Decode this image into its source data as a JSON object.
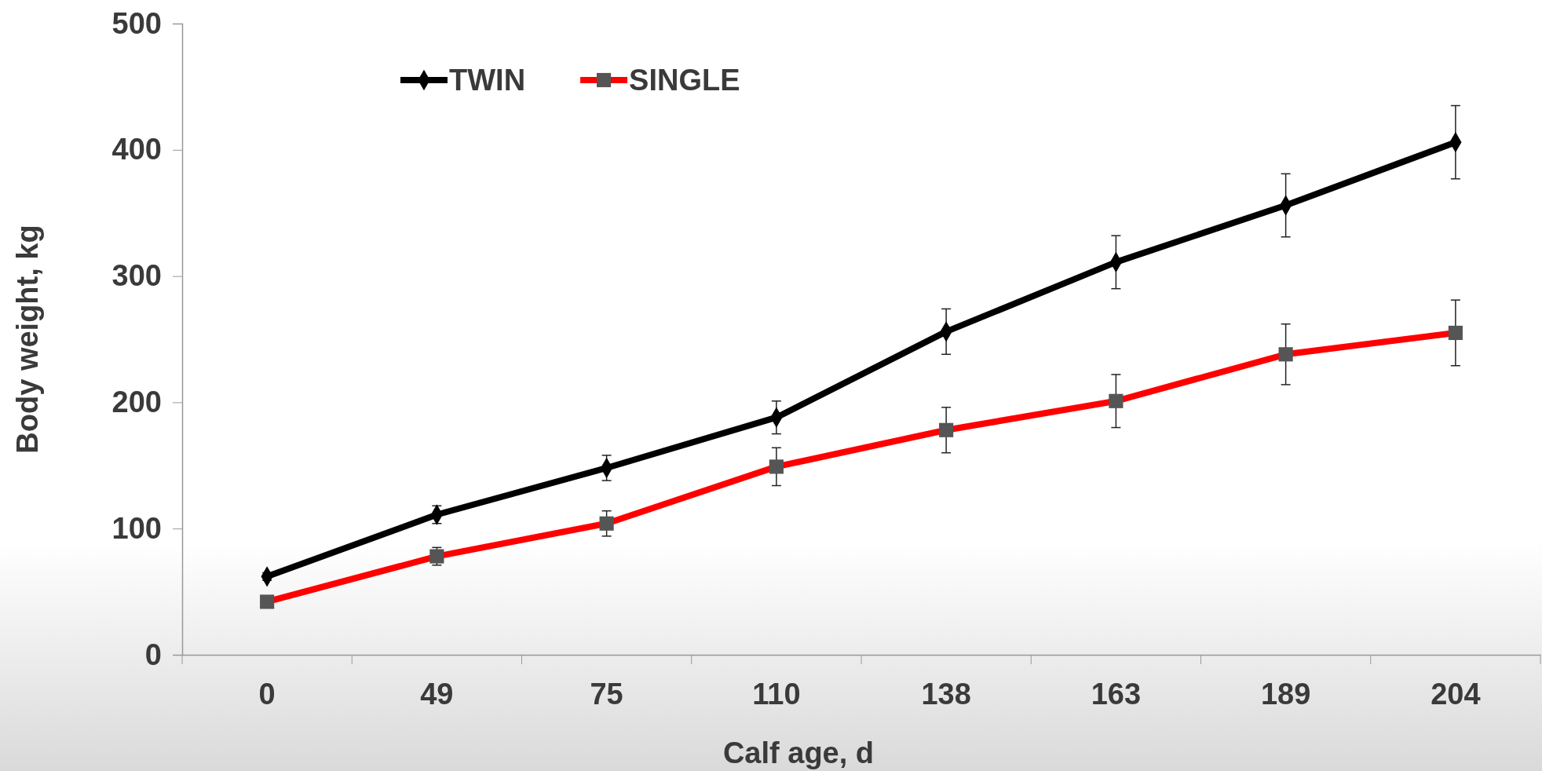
{
  "chart_data": {
    "type": "line",
    "xlabel": "Calf age, d",
    "ylabel": "Body weight, kg",
    "categories": [
      "0",
      "49",
      "75",
      "110",
      "138",
      "163",
      "189",
      "204"
    ],
    "ylim": [
      0,
      500
    ],
    "yticks": [
      0,
      100,
      200,
      300,
      400,
      500
    ],
    "grid": false,
    "legend": "top left",
    "line_style": "solid",
    "series": [
      {
        "name": "TWIN",
        "color": "#000000",
        "marker": "diamond",
        "values": [
          62,
          111,
          148,
          188,
          256,
          311,
          356,
          406
        ],
        "errors": [
          3,
          7,
          10,
          13,
          18,
          21,
          25,
          29
        ]
      },
      {
        "name": "SINGLE",
        "color": "#ff0000",
        "marker": "square",
        "values": [
          42,
          78,
          104,
          149,
          178,
          201,
          238,
          255
        ],
        "errors": [
          3,
          7,
          10,
          15,
          18,
          21,
          24,
          26
        ]
      }
    ]
  }
}
